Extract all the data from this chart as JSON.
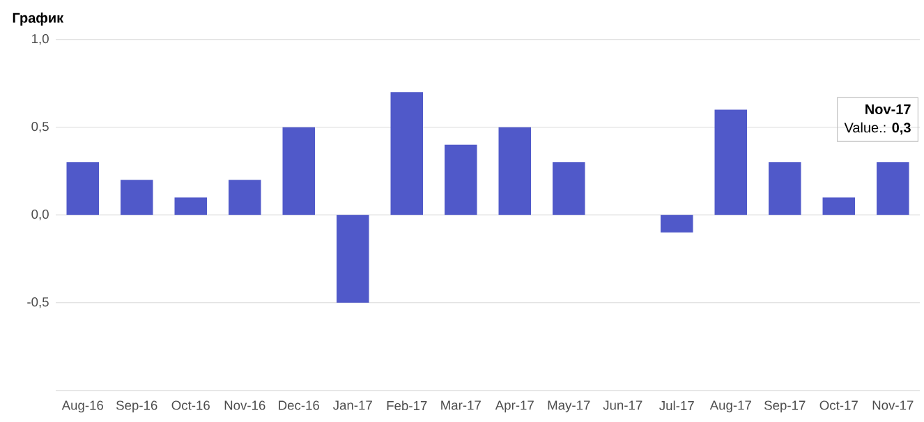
{
  "chart_data": {
    "type": "bar",
    "title": "График",
    "categories": [
      "Aug-16",
      "Sep-16",
      "Oct-16",
      "Nov-16",
      "Dec-16",
      "Jan-17",
      "Feb-17",
      "Mar-17",
      "Apr-17",
      "May-17",
      "Jun-17",
      "Jul-17",
      "Aug-17",
      "Sep-17",
      "Oct-17",
      "Nov-17"
    ],
    "values": [
      0.3,
      0.2,
      0.1,
      0.2,
      0.5,
      -0.5,
      0.7,
      0.4,
      0.5,
      0.3,
      0,
      -0.1,
      0.6,
      0.3,
      0.1,
      0.3
    ],
    "color": "#5059c9",
    "ylim": [
      -1,
      1
    ],
    "yticks": [
      {
        "value": -1,
        "label": null
      },
      {
        "value": -0.5,
        "label": "-0,5"
      },
      {
        "value": 0,
        "label": "0,0"
      },
      {
        "value": 0.5,
        "label": "0,5"
      },
      {
        "value": 1,
        "label": "1,0"
      }
    ],
    "grid": "y",
    "annotations": [
      "**Nov-17**",
      "Value.: **0,3**"
    ]
  }
}
